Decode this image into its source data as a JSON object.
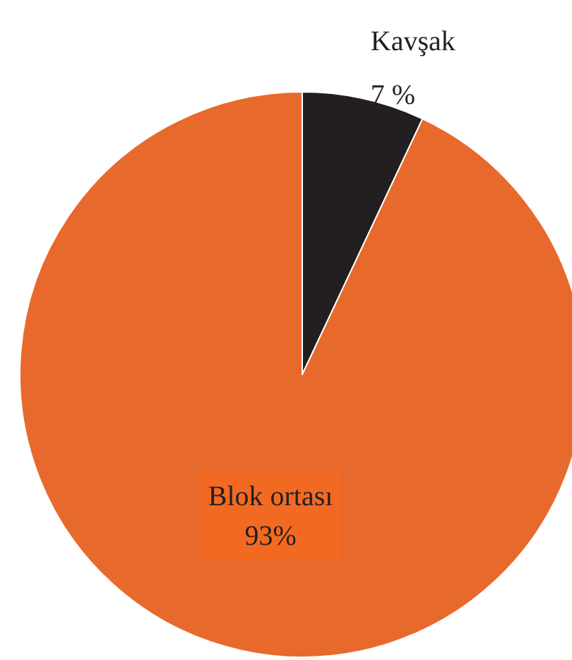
{
  "chart_data": {
    "type": "pie",
    "categories": [
      "Kavşak",
      "Blok ortası"
    ],
    "values": [
      7,
      93
    ],
    "value_labels": [
      "7 %",
      "93%"
    ],
    "colors": [
      "#231f20",
      "#e8692c"
    ]
  }
}
